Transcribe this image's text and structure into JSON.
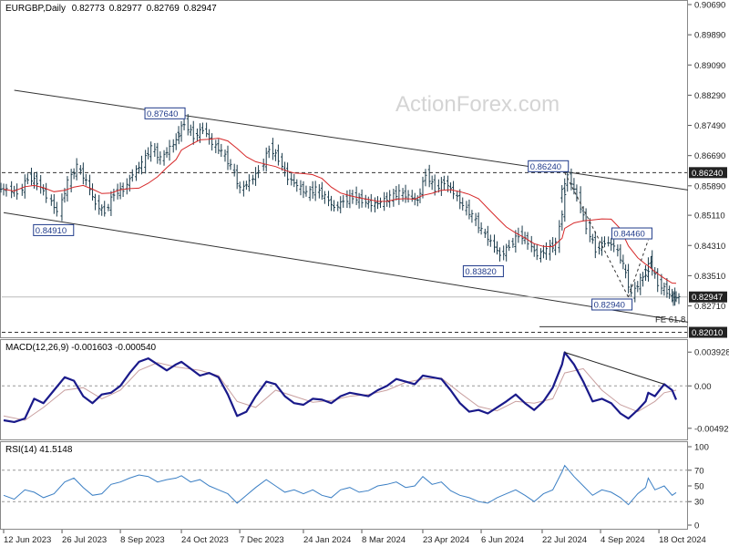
{
  "chart_data": {
    "type": "line",
    "symbol": "EURGBP",
    "timeframe": "Daily",
    "ohlc": {
      "open": "0.82773",
      "high": "0.82977",
      "low": "0.82769",
      "close": "0.82947"
    },
    "watermark": "ActionForex.com",
    "x_tick_labels": [
      "12 Jun 2023",
      "26 Jul 2023",
      "8 Sep 2023",
      "24 Oct 2023",
      "7 Dec 2023",
      "24 Jan 2024",
      "8 Mar 2024",
      "23 Apr 2024",
      "6 Jun 2024",
      "22 Jul 2024",
      "4 Sep 2024",
      "18 Oct 2024"
    ],
    "price_panel": {
      "y_ticks": [
        "0.90690",
        "0.89890",
        "0.89090",
        "0.88290",
        "0.87490",
        "0.86690",
        "0.85890",
        "0.85110",
        "0.84310",
        "0.83510",
        "0.82710"
      ],
      "ylim": [
        0.8195,
        0.9069
      ],
      "current_price": "0.82947",
      "levels": [
        {
          "label": "0.86240",
          "value": 0.8624
        },
        {
          "label": "0.82010",
          "value": 0.8201
        }
      ],
      "swing_labels": [
        {
          "text": "0.87640",
          "date": "2023-10-24",
          "value": 0.8764
        },
        {
          "text": "0.84910",
          "date": "2023-08-01",
          "value": 0.8491
        },
        {
          "text": "0.86240",
          "date": "2024-08-08",
          "value": 0.8624
        },
        {
          "text": "0.83820",
          "date": "2024-06-20",
          "value": 0.8382
        },
        {
          "text": "0.84460",
          "date": "2024-10-10",
          "value": 0.8446
        },
        {
          "text": "0.82940",
          "date": "2024-09-25",
          "value": 0.8294
        }
      ],
      "fe_label": "FE 61.8",
      "fe_value": 0.8235,
      "close_series": [
        [
          "2023-06-12",
          0.858
        ],
        [
          "2023-06-20",
          0.857
        ],
        [
          "2023-06-28",
          0.861
        ],
        [
          "2023-07-05",
          0.86
        ],
        [
          "2023-07-12",
          0.856
        ],
        [
          "2023-07-20",
          0.852
        ],
        [
          "2023-07-28",
          0.86
        ],
        [
          "2023-08-04",
          0.864
        ],
        [
          "2023-08-11",
          0.86
        ],
        [
          "2023-08-18",
          0.854
        ],
        [
          "2023-08-25",
          0.852
        ],
        [
          "2023-09-01",
          0.857
        ],
        [
          "2023-09-08",
          0.858
        ],
        [
          "2023-09-15",
          0.862
        ],
        [
          "2023-09-22",
          0.865
        ],
        [
          "2023-09-29",
          0.869
        ],
        [
          "2023-10-06",
          0.866
        ],
        [
          "2023-10-13",
          0.869
        ],
        [
          "2023-10-20",
          0.872
        ],
        [
          "2023-10-24",
          0.8755
        ],
        [
          "2023-10-31",
          0.872
        ],
        [
          "2023-11-07",
          0.874
        ],
        [
          "2023-11-14",
          0.87
        ],
        [
          "2023-11-21",
          0.868
        ],
        [
          "2023-11-28",
          0.864
        ],
        [
          "2023-12-05",
          0.858
        ],
        [
          "2023-12-12",
          0.86
        ],
        [
          "2023-12-19",
          0.863
        ],
        [
          "2023-12-27",
          0.869
        ],
        [
          "2024-01-03",
          0.866
        ],
        [
          "2024-01-10",
          0.861
        ],
        [
          "2024-01-17",
          0.859
        ],
        [
          "2024-01-24",
          0.857
        ],
        [
          "2024-01-31",
          0.858
        ],
        [
          "2024-02-07",
          0.856
        ],
        [
          "2024-02-14",
          0.853
        ],
        [
          "2024-02-21",
          0.855
        ],
        [
          "2024-02-28",
          0.856
        ],
        [
          "2024-03-06",
          0.855
        ],
        [
          "2024-03-13",
          0.854
        ],
        [
          "2024-03-20",
          0.8545
        ],
        [
          "2024-03-27",
          0.856
        ],
        [
          "2024-04-03",
          0.857
        ],
        [
          "2024-04-10",
          0.856
        ],
        [
          "2024-04-17",
          0.855
        ],
        [
          "2024-04-23",
          0.862
        ],
        [
          "2024-04-30",
          0.858
        ],
        [
          "2024-05-07",
          0.86
        ],
        [
          "2024-05-14",
          0.857
        ],
        [
          "2024-05-21",
          0.8535
        ],
        [
          "2024-05-28",
          0.851
        ],
        [
          "2024-06-04",
          0.847
        ],
        [
          "2024-06-11",
          0.844
        ],
        [
          "2024-06-18",
          0.8405
        ],
        [
          "2024-06-25",
          0.843
        ],
        [
          "2024-07-02",
          0.846
        ],
        [
          "2024-07-09",
          0.844
        ],
        [
          "2024-07-16",
          0.8405
        ],
        [
          "2024-07-23",
          0.842
        ],
        [
          "2024-07-30",
          0.8435
        ],
        [
          "2024-08-06",
          0.856
        ],
        [
          "2024-08-08",
          0.8615
        ],
        [
          "2024-08-15",
          0.856
        ],
        [
          "2024-08-22",
          0.848
        ],
        [
          "2024-08-29",
          0.842
        ],
        [
          "2024-09-05",
          0.844
        ],
        [
          "2024-09-12",
          0.843
        ],
        [
          "2024-09-19",
          0.838
        ],
        [
          "2024-09-25",
          0.83
        ],
        [
          "2024-10-02",
          0.834
        ],
        [
          "2024-10-08",
          0.836
        ],
        [
          "2024-10-10",
          0.839
        ],
        [
          "2024-10-15",
          0.833
        ],
        [
          "2024-10-22",
          0.831
        ],
        [
          "2024-10-28",
          0.829
        ],
        [
          "2024-10-31",
          0.8295
        ]
      ]
    },
    "macd_panel": {
      "label": "MACD(12,26,9) -0.001603 -0.000540",
      "y_ticks": [
        "0.003928",
        "0.00",
        "-0.004929"
      ],
      "ylim": [
        -0.0058,
        0.0048
      ],
      "macd_series": [
        [
          "2023-06-12",
          -0.004
        ],
        [
          "2023-06-20",
          -0.0042
        ],
        [
          "2023-06-28",
          -0.0038
        ],
        [
          "2023-07-05",
          -0.0015
        ],
        [
          "2023-07-12",
          -0.002
        ],
        [
          "2023-07-20",
          -0.0005
        ],
        [
          "2023-07-28",
          0.001
        ],
        [
          "2023-08-04",
          0.0006
        ],
        [
          "2023-08-11",
          -0.0012
        ],
        [
          "2023-08-18",
          -0.002
        ],
        [
          "2023-08-25",
          -0.001
        ],
        [
          "2023-09-01",
          -0.0008
        ],
        [
          "2023-09-08",
          0.0
        ],
        [
          "2023-09-15",
          0.0015
        ],
        [
          "2023-09-22",
          0.0028
        ],
        [
          "2023-09-29",
          0.0032
        ],
        [
          "2023-10-06",
          0.0025
        ],
        [
          "2023-10-13",
          0.0018
        ],
        [
          "2023-10-20",
          0.0025
        ],
        [
          "2023-10-24",
          0.0028
        ],
        [
          "2023-10-31",
          0.002
        ],
        [
          "2023-11-07",
          0.0012
        ],
        [
          "2023-11-14",
          0.0015
        ],
        [
          "2023-11-21",
          0.001
        ],
        [
          "2023-11-28",
          -0.001
        ],
        [
          "2023-12-05",
          -0.0035
        ],
        [
          "2023-12-12",
          -0.003
        ],
        [
          "2023-12-19",
          -0.0012
        ],
        [
          "2023-12-27",
          0.0005
        ],
        [
          "2024-01-03",
          0.0002
        ],
        [
          "2024-01-10",
          -0.0012
        ],
        [
          "2024-01-17",
          -0.002
        ],
        [
          "2024-01-24",
          -0.0022
        ],
        [
          "2024-01-31",
          -0.0015
        ],
        [
          "2024-02-07",
          -0.0016
        ],
        [
          "2024-02-14",
          -0.002
        ],
        [
          "2024-02-21",
          -0.0012
        ],
        [
          "2024-02-28",
          -0.0008
        ],
        [
          "2024-03-06",
          -0.001
        ],
        [
          "2024-03-13",
          -0.0012
        ],
        [
          "2024-03-20",
          -0.0005
        ],
        [
          "2024-03-27",
          0.0
        ],
        [
          "2024-04-03",
          0.0008
        ],
        [
          "2024-04-10",
          0.0005
        ],
        [
          "2024-04-17",
          0.0002
        ],
        [
          "2024-04-23",
          0.0012
        ],
        [
          "2024-04-30",
          0.001
        ],
        [
          "2024-05-07",
          0.0008
        ],
        [
          "2024-05-14",
          -0.0005
        ],
        [
          "2024-05-21",
          -0.002
        ],
        [
          "2024-05-28",
          -0.003
        ],
        [
          "2024-06-04",
          -0.0028
        ],
        [
          "2024-06-11",
          -0.0032
        ],
        [
          "2024-06-18",
          -0.0025
        ],
        [
          "2024-06-25",
          -0.0018
        ],
        [
          "2024-07-02",
          -0.001
        ],
        [
          "2024-07-09",
          -0.002
        ],
        [
          "2024-07-16",
          -0.0028
        ],
        [
          "2024-07-23",
          -0.0018
        ],
        [
          "2024-07-30",
          -0.0002
        ],
        [
          "2024-08-06",
          0.0025
        ],
        [
          "2024-08-08",
          0.0039
        ],
        [
          "2024-08-15",
          0.0025
        ],
        [
          "2024-08-22",
          0.0005
        ],
        [
          "2024-08-29",
          -0.0018
        ],
        [
          "2024-09-05",
          -0.0015
        ],
        [
          "2024-09-12",
          -0.002
        ],
        [
          "2024-09-19",
          -0.0032
        ],
        [
          "2024-09-25",
          -0.0038
        ],
        [
          "2024-10-02",
          -0.0028
        ],
        [
          "2024-10-08",
          -0.0018
        ],
        [
          "2024-10-10",
          -0.0008
        ],
        [
          "2024-10-15",
          -0.0012
        ],
        [
          "2024-10-22",
          0.0002
        ],
        [
          "2024-10-28",
          -0.0005
        ],
        [
          "2024-10-31",
          -0.0016
        ]
      ],
      "signal_series": [
        [
          "2023-06-12",
          -0.0035
        ],
        [
          "2023-06-28",
          -0.004
        ],
        [
          "2023-07-12",
          -0.0025
        ],
        [
          "2023-07-28",
          -0.0005
        ],
        [
          "2023-08-11",
          -0.0002
        ],
        [
          "2023-08-25",
          -0.0015
        ],
        [
          "2023-09-08",
          -0.0005
        ],
        [
          "2023-09-22",
          0.0018
        ],
        [
          "2023-10-06",
          0.0027
        ],
        [
          "2023-10-20",
          0.0022
        ],
        [
          "2023-11-07",
          0.0018
        ],
        [
          "2023-11-21",
          0.0012
        ],
        [
          "2023-12-05",
          -0.0018
        ],
        [
          "2023-12-19",
          -0.0025
        ],
        [
          "2024-01-03",
          -0.0005
        ],
        [
          "2024-01-17",
          -0.0012
        ],
        [
          "2024-01-31",
          -0.0019
        ],
        [
          "2024-02-14",
          -0.0017
        ],
        [
          "2024-02-28",
          -0.0012
        ],
        [
          "2024-03-13",
          -0.001
        ],
        [
          "2024-03-27",
          -0.0005
        ],
        [
          "2024-04-10",
          0.0004
        ],
        [
          "2024-04-23",
          0.0008
        ],
        [
          "2024-05-07",
          0.0009
        ],
        [
          "2024-05-21",
          -0.0008
        ],
        [
          "2024-06-04",
          -0.0024
        ],
        [
          "2024-06-18",
          -0.0029
        ],
        [
          "2024-07-02",
          -0.0018
        ],
        [
          "2024-07-16",
          -0.002
        ],
        [
          "2024-07-30",
          -0.0015
        ],
        [
          "2024-08-08",
          0.0015
        ],
        [
          "2024-08-22",
          0.002
        ],
        [
          "2024-09-05",
          -0.0005
        ],
        [
          "2024-09-19",
          -0.0022
        ],
        [
          "2024-10-02",
          -0.003
        ],
        [
          "2024-10-15",
          -0.0018
        ],
        [
          "2024-10-22",
          -0.0008
        ],
        [
          "2024-10-31",
          -0.0005
        ]
      ]
    },
    "rsi_panel": {
      "label": "RSI(14) 41.5148",
      "y_ticks": [
        "100",
        "70",
        "50",
        "30",
        "0"
      ],
      "ylim": [
        0,
        100
      ],
      "levels": [
        70,
        30
      ],
      "rsi_series": [
        [
          "2023-06-12",
          38
        ],
        [
          "2023-06-20",
          33
        ],
        [
          "2023-06-28",
          45
        ],
        [
          "2023-07-05",
          42
        ],
        [
          "2023-07-12",
          35
        ],
        [
          "2023-07-20",
          40
        ],
        [
          "2023-07-28",
          55
        ],
        [
          "2023-08-04",
          60
        ],
        [
          "2023-08-11",
          48
        ],
        [
          "2023-08-18",
          38
        ],
        [
          "2023-08-25",
          40
        ],
        [
          "2023-09-01",
          52
        ],
        [
          "2023-09-08",
          55
        ],
        [
          "2023-09-15",
          60
        ],
        [
          "2023-09-22",
          64
        ],
        [
          "2023-09-29",
          62
        ],
        [
          "2023-10-06",
          55
        ],
        [
          "2023-10-13",
          58
        ],
        [
          "2023-10-20",
          60
        ],
        [
          "2023-10-24",
          63
        ],
        [
          "2023-10-31",
          55
        ],
        [
          "2023-11-07",
          58
        ],
        [
          "2023-11-14",
          50
        ],
        [
          "2023-11-21",
          45
        ],
        [
          "2023-11-28",
          40
        ],
        [
          "2023-12-05",
          28
        ],
        [
          "2023-12-12",
          38
        ],
        [
          "2023-12-19",
          48
        ],
        [
          "2023-12-27",
          58
        ],
        [
          "2024-01-03",
          50
        ],
        [
          "2024-01-10",
          42
        ],
        [
          "2024-01-17",
          45
        ],
        [
          "2024-01-24",
          40
        ],
        [
          "2024-01-31",
          45
        ],
        [
          "2024-02-07",
          38
        ],
        [
          "2024-02-14",
          35
        ],
        [
          "2024-02-21",
          45
        ],
        [
          "2024-02-28",
          48
        ],
        [
          "2024-03-06",
          42
        ],
        [
          "2024-03-13",
          44
        ],
        [
          "2024-03-20",
          50
        ],
        [
          "2024-03-27",
          52
        ],
        [
          "2024-04-03",
          55
        ],
        [
          "2024-04-10",
          48
        ],
        [
          "2024-04-17",
          50
        ],
        [
          "2024-04-23",
          62
        ],
        [
          "2024-04-30",
          52
        ],
        [
          "2024-05-07",
          55
        ],
        [
          "2024-05-14",
          44
        ],
        [
          "2024-05-21",
          38
        ],
        [
          "2024-05-28",
          35
        ],
        [
          "2024-06-04",
          30
        ],
        [
          "2024-06-11",
          28
        ],
        [
          "2024-06-18",
          35
        ],
        [
          "2024-06-25",
          40
        ],
        [
          "2024-07-02",
          45
        ],
        [
          "2024-07-09",
          38
        ],
        [
          "2024-07-16",
          30
        ],
        [
          "2024-07-23",
          40
        ],
        [
          "2024-07-30",
          45
        ],
        [
          "2024-08-06",
          68
        ],
        [
          "2024-08-08",
          76
        ],
        [
          "2024-08-15",
          62
        ],
        [
          "2024-08-22",
          50
        ],
        [
          "2024-08-29",
          38
        ],
        [
          "2024-09-05",
          45
        ],
        [
          "2024-09-12",
          42
        ],
        [
          "2024-09-19",
          35
        ],
        [
          "2024-09-25",
          26
        ],
        [
          "2024-10-02",
          40
        ],
        [
          "2024-10-08",
          48
        ],
        [
          "2024-10-10",
          60
        ],
        [
          "2024-10-15",
          45
        ],
        [
          "2024-10-22",
          50
        ],
        [
          "2024-10-28",
          38
        ],
        [
          "2024-10-31",
          41.5
        ]
      ]
    }
  }
}
